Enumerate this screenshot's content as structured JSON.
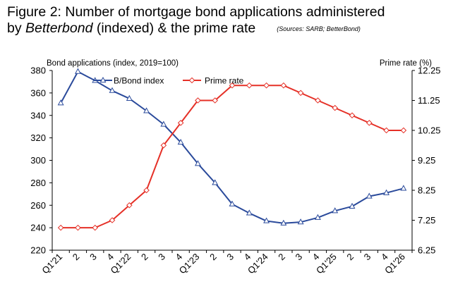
{
  "title": {
    "line1": "Figure 2: Number of mortgage bond applications administered",
    "line2_prefix": "by ",
    "line2_italic": "Betterbond",
    "line2_suffix": " (indexed) & the prime rate",
    "source": "(Sources: SARB; BetterBond)"
  },
  "chart_data": {
    "type": "line",
    "title": "Figure 2: Number of mortgage bond applications administered by Betterbond (indexed) & the prime rate",
    "categories": [
      "Q1'21",
      "2",
      "3",
      "4",
      "Q1'22",
      "2",
      "3",
      "4",
      "Q1'23",
      "2",
      "3",
      "4",
      "Q1'24",
      "2",
      "3",
      "4",
      "Q1'25",
      "2",
      "3",
      "4",
      "Q1'26"
    ],
    "ylabel_left": "Bond applications (index, 2019=100)",
    "ylabel_right": "Prime rate (%)",
    "ylim_left": [
      220,
      380
    ],
    "yticks_left": [
      "220",
      "240",
      "260",
      "280",
      "300",
      "320",
      "340",
      "360",
      "380"
    ],
    "ylim_right": [
      6.25,
      12.25
    ],
    "yticks_right": [
      "6.25",
      "7.25",
      "8.25",
      "9.25",
      "10.25",
      "11.25",
      "12.25"
    ],
    "legend_position": "top-center",
    "grid": false,
    "series": [
      {
        "name": "B/Bond index",
        "axis": "left",
        "color": "#2a4a9b",
        "marker": "triangle",
        "values": [
          351,
          379,
          371,
          362,
          355,
          344,
          332,
          316,
          297,
          280,
          261,
          253,
          246,
          244,
          245,
          249,
          255,
          259,
          268,
          271,
          275
        ]
      },
      {
        "name": "Prime rate",
        "axis": "right",
        "color": "#e53027",
        "marker": "diamond",
        "values": [
          7.0,
          7.0,
          7.0,
          7.25,
          7.75,
          8.25,
          9.75,
          10.5,
          11.25,
          11.25,
          11.75,
          11.75,
          11.75,
          11.75,
          11.5,
          11.25,
          11.0,
          10.75,
          10.5,
          10.25,
          10.25
        ]
      }
    ]
  }
}
